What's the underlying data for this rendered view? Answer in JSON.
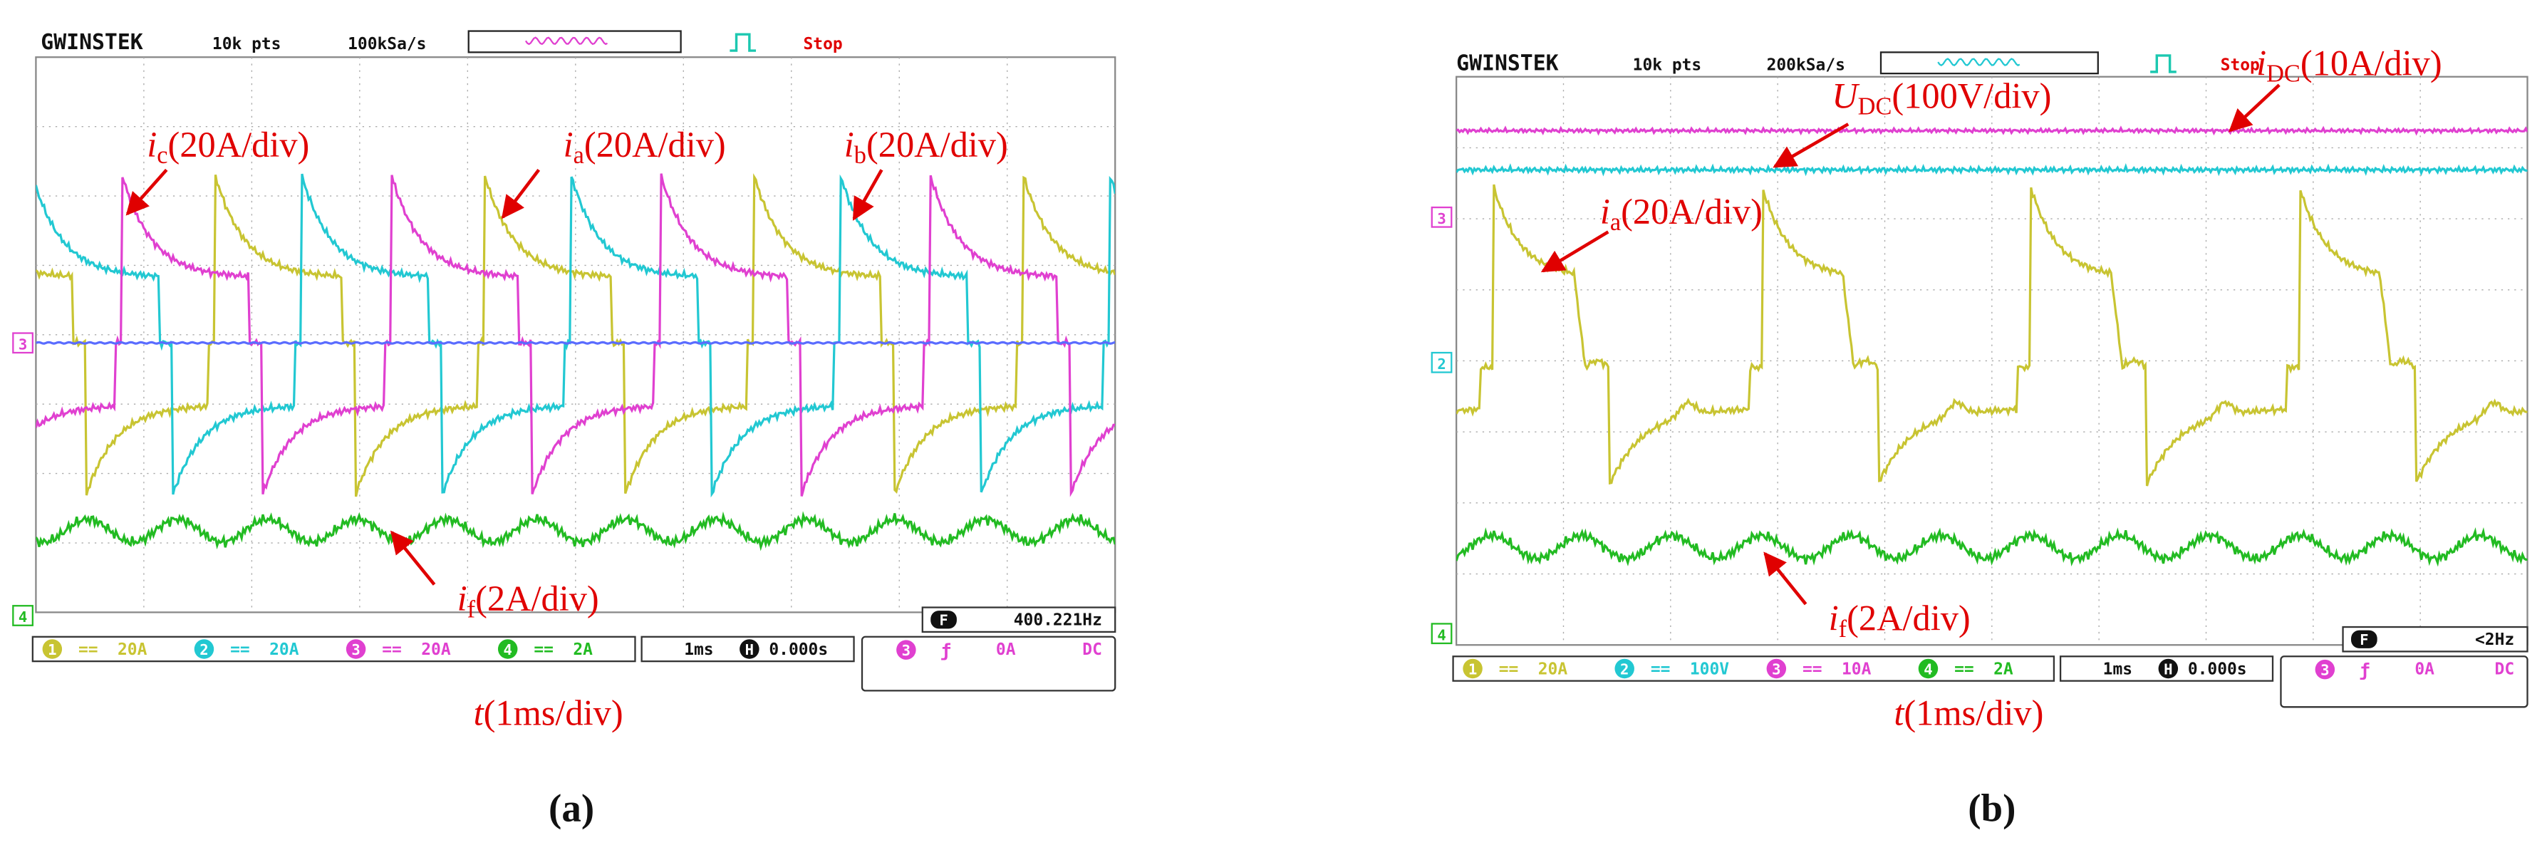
{
  "panels": [
    {
      "header": {
        "brand": "GWINSTEK",
        "record": "10k pts",
        "rate": "100kSa/s",
        "status": "Stop"
      },
      "markers": [
        "3",
        "4"
      ],
      "annotations": [
        {
          "symbol": "i",
          "subscript": "c",
          "scale": "(20A/div)"
        },
        {
          "symbol": "i",
          "subscript": "a",
          "scale": "(20A/div)"
        },
        {
          "symbol": "i",
          "subscript": "b",
          "scale": "(20A/div)"
        },
        {
          "symbol": "i",
          "subscript": "f",
          "scale": "(2A/div)"
        }
      ],
      "channels": [
        {
          "number": "1",
          "coupling": "==",
          "scale": "20A"
        },
        {
          "number": "2",
          "coupling": "==",
          "scale": "20A"
        },
        {
          "number": "3",
          "coupling": "==",
          "scale": "20A"
        },
        {
          "number": "4",
          "coupling": "==",
          "scale": "2A"
        }
      ],
      "timebase": {
        "scale": "1ms",
        "icon": "H",
        "position": "0.000s"
      },
      "trigger": {
        "source": "3",
        "slope": "ƒ",
        "level": "0A",
        "coupling": "DC"
      },
      "frequency": {
        "icon": "F",
        "value": "400.221Hz"
      },
      "time_axis": {
        "symbol": "t",
        "scale": "(1ms/div)"
      },
      "caption": "(a)"
    },
    {
      "header": {
        "brand": "GWINSTEK",
        "record": "10k pts",
        "rate": "200kSa/s",
        "status": "Stop"
      },
      "markers": [
        "3",
        "2",
        "4"
      ],
      "annotations": [
        {
          "symbol": "U",
          "subscript": "DC",
          "scale": "(100V/div)"
        },
        {
          "symbol": "i",
          "subscript": "DC",
          "scale": "(10A/div)"
        },
        {
          "symbol": "i",
          "subscript": "a",
          "scale": "(20A/div)"
        },
        {
          "symbol": "i",
          "subscript": "f",
          "scale": "(2A/div)"
        }
      ],
      "channels": [
        {
          "number": "1",
          "coupling": "==",
          "scale": "20A"
        },
        {
          "number": "2",
          "coupling": "==",
          "scale": "100V"
        },
        {
          "number": "3",
          "coupling": "==",
          "scale": "10A"
        },
        {
          "number": "4",
          "coupling": "==",
          "scale": "2A"
        }
      ],
      "timebase": {
        "scale": "1ms",
        "icon": "H",
        "position": "0.000s"
      },
      "trigger": {
        "source": "3",
        "slope": "ƒ",
        "level": "0A",
        "coupling": "DC"
      },
      "frequency": {
        "icon": "F",
        "value": "<2Hz"
      },
      "time_axis": {
        "symbol": "t",
        "scale": "(1ms/div)"
      },
      "caption": "(b)"
    }
  ]
}
